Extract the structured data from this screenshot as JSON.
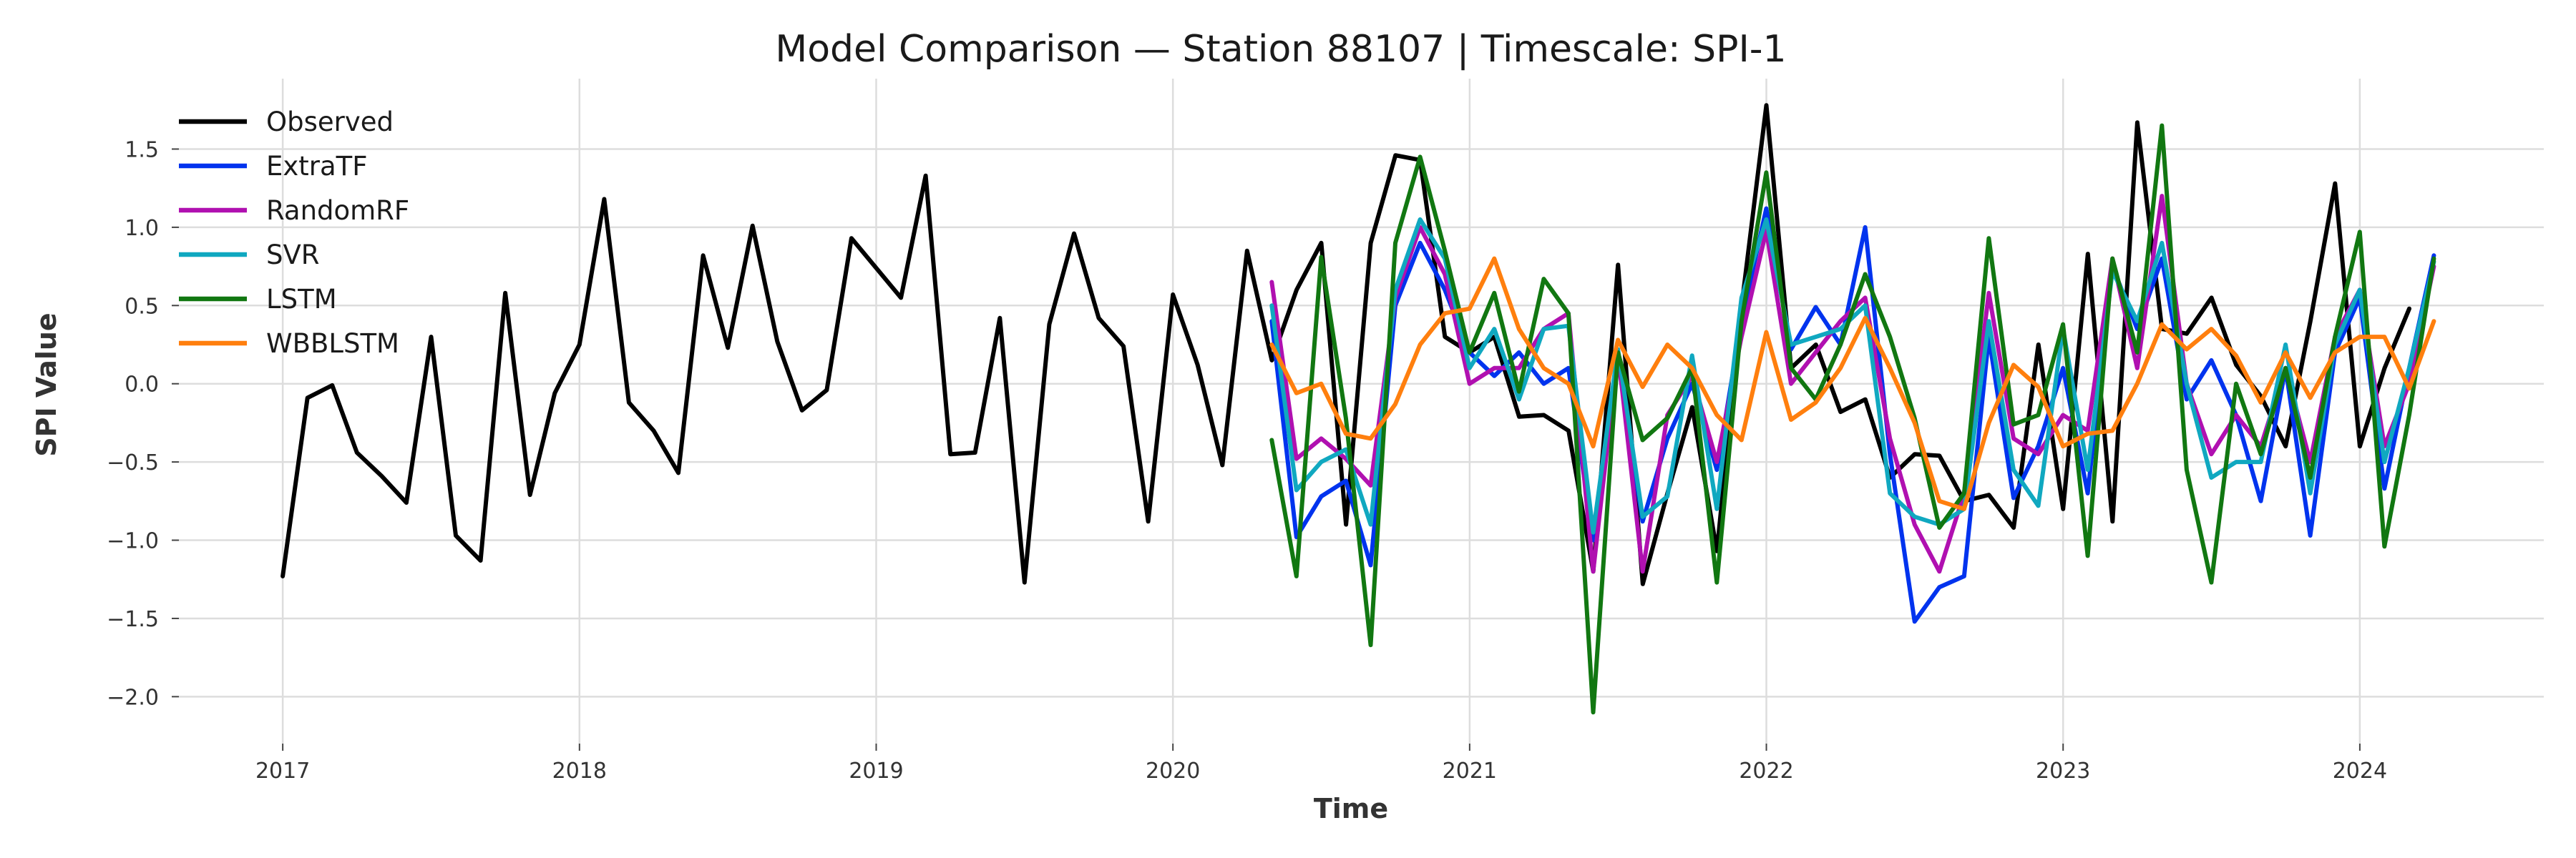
{
  "chart_data": {
    "type": "line",
    "title": "Model Comparison — Station 88107 | Timescale: SPI-1",
    "xlabel": "Time",
    "ylabel": "SPI Value",
    "xlim": [
      2016.65,
      2024.62
    ],
    "ylim": [
      -2.3,
      1.95
    ],
    "xticks": [
      2017,
      2018,
      2019,
      2020,
      2021,
      2022,
      2023,
      2024
    ],
    "xtick_labels": [
      "2017",
      "2018",
      "2019",
      "2020",
      "2021",
      "2022",
      "2023",
      "2024"
    ],
    "yticks": [
      -2.0,
      -1.5,
      -1.0,
      -0.5,
      0.0,
      0.5,
      1.0,
      1.5
    ],
    "ytick_labels": [
      "−2.0",
      "−1.5",
      "−1.0",
      "−0.5",
      "0.0",
      "0.5",
      "1.0",
      "1.5"
    ],
    "grid": true,
    "legend_position": "top-left",
    "series": [
      {
        "name": "Observed",
        "color": "#000000",
        "x_start": 2017.0,
        "values": [
          -1.23,
          -0.09,
          -0.01,
          -0.44,
          -0.59,
          -0.76,
          0.3,
          -0.97,
          -1.13,
          0.58,
          -0.71,
          -0.06,
          0.25,
          1.18,
          -0.12,
          -0.3,
          -0.57,
          0.82,
          0.23,
          1.01,
          0.27,
          -0.17,
          -0.04,
          0.93,
          0.74,
          0.55,
          1.33,
          -0.45,
          -0.44,
          0.42,
          -1.27,
          0.38,
          0.96,
          0.42,
          0.24,
          -0.88,
          0.57,
          0.12,
          -0.52,
          0.85,
          0.15,
          0.6,
          0.9,
          -0.9,
          0.9,
          1.46,
          1.43,
          0.3,
          0.2,
          0.3,
          -0.21,
          -0.2,
          -0.3,
          -1.2,
          0.76,
          -1.28,
          -0.7,
          -0.15,
          -1.07,
          0.5,
          1.78,
          0.1,
          0.25,
          -0.18,
          -0.1,
          -0.6,
          -0.45,
          -0.46,
          -0.75,
          -0.71,
          -0.92,
          0.25,
          -0.8,
          0.83,
          -0.88,
          1.67,
          0.35,
          0.32,
          0.55,
          0.12,
          -0.08,
          -0.4,
          0.4,
          1.28,
          -0.4,
          0.1,
          0.48
        ]
      },
      {
        "name": "ExtraTF",
        "color": "#0033ee",
        "x_start": 2020.333,
        "values": [
          0.4,
          -0.98,
          -0.72,
          -0.62,
          -1.16,
          0.5,
          0.9,
          0.6,
          0.2,
          0.05,
          0.2,
          0.0,
          0.1,
          -1.0,
          0.15,
          -0.88,
          -0.35,
          0.0,
          -0.55,
          0.4,
          1.12,
          0.22,
          0.49,
          0.25,
          1.0,
          -0.45,
          -1.52,
          -1.3,
          -1.23,
          0.3,
          -0.73,
          -0.4,
          0.1,
          -0.7,
          0.75,
          0.35,
          0.8,
          -0.1,
          0.15,
          -0.2,
          -0.75,
          0.1,
          -0.97,
          0.2,
          0.55,
          -0.67,
          0.1,
          0.82
        ]
      },
      {
        "name": "RandomRF",
        "color": "#b010b0",
        "x_start": 2020.333,
        "values": [
          0.65,
          -0.48,
          -0.35,
          -0.48,
          -0.65,
          0.55,
          1.0,
          0.7,
          0.0,
          0.1,
          0.1,
          0.35,
          0.45,
          -1.2,
          0.2,
          -1.2,
          -0.2,
          0.05,
          -0.5,
          0.3,
          0.98,
          0.0,
          0.2,
          0.4,
          0.55,
          -0.35,
          -0.9,
          -1.2,
          -0.7,
          0.58,
          -0.35,
          -0.45,
          -0.2,
          -0.3,
          0.8,
          0.1,
          1.2,
          0.0,
          -0.45,
          -0.2,
          -0.4,
          0.1,
          -0.5,
          0.3,
          0.6,
          -0.4,
          0.0,
          0.75
        ]
      },
      {
        "name": "SVR",
        "color": "#10a8c0",
        "x_start": 2020.333,
        "values": [
          0.5,
          -0.68,
          -0.5,
          -0.42,
          -0.9,
          0.6,
          1.05,
          0.8,
          0.1,
          0.35,
          -0.1,
          0.35,
          0.37,
          -0.95,
          0.22,
          -0.85,
          -0.72,
          0.18,
          -0.8,
          0.55,
          1.05,
          0.25,
          0.3,
          0.35,
          0.5,
          -0.7,
          -0.85,
          -0.9,
          -0.8,
          0.4,
          -0.55,
          -0.78,
          0.35,
          -0.55,
          0.72,
          0.4,
          0.9,
          0.0,
          -0.6,
          -0.5,
          -0.5,
          0.25,
          -0.7,
          0.25,
          0.6,
          -0.5,
          0.1,
          0.78
        ]
      },
      {
        "name": "LSTM",
        "color": "#117711",
        "x_start": 2020.333,
        "values": [
          -0.36,
          -1.23,
          0.81,
          -0.22,
          -1.67,
          0.9,
          1.45,
          0.85,
          0.2,
          0.58,
          -0.05,
          0.67,
          0.45,
          -2.1,
          0.2,
          -0.36,
          -0.22,
          0.1,
          -1.27,
          0.4,
          1.35,
          0.1,
          -0.1,
          0.25,
          0.7,
          0.3,
          -0.22,
          -0.92,
          -0.7,
          0.93,
          -0.26,
          -0.2,
          0.38,
          -1.1,
          0.8,
          0.2,
          1.65,
          -0.55,
          -1.27,
          0.0,
          -0.45,
          0.1,
          -0.6,
          0.3,
          0.97,
          -1.04,
          -0.2,
          0.8
        ]
      },
      {
        "name": "WBBLSTM",
        "color": "#ff7f0e",
        "x_start": 2020.333,
        "values": [
          0.25,
          -0.06,
          0.0,
          -0.32,
          -0.35,
          -0.13,
          0.25,
          0.45,
          0.48,
          0.8,
          0.35,
          0.1,
          0.0,
          -0.4,
          0.28,
          -0.02,
          0.25,
          0.1,
          -0.2,
          -0.36,
          0.33,
          -0.23,
          -0.12,
          0.1,
          0.42,
          0.1,
          -0.25,
          -0.75,
          -0.8,
          -0.25,
          0.12,
          -0.02,
          -0.4,
          -0.32,
          -0.3,
          0.0,
          0.38,
          0.22,
          0.35,
          0.18,
          -0.12,
          0.2,
          -0.09,
          0.2,
          0.3,
          0.3,
          -0.03,
          0.4
        ]
      }
    ]
  }
}
